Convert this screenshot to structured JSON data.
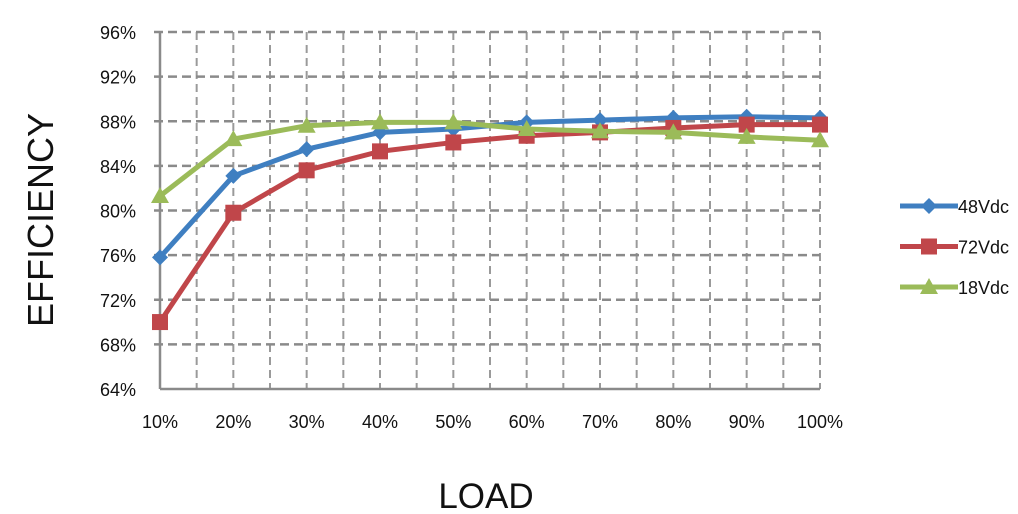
{
  "chart_data": {
    "type": "line",
    "title": "",
    "xlabel": "LOAD",
    "ylabel": "EFFICIENCY",
    "categories": [
      "10%",
      "20%",
      "30%",
      "40%",
      "50%",
      "60%",
      "70%",
      "80%",
      "90%",
      "100%"
    ],
    "y_ticks": [
      "64%",
      "68%",
      "72%",
      "76%",
      "80%",
      "84%",
      "88%",
      "92%",
      "96%"
    ],
    "ylim": [
      64,
      96
    ],
    "grid": true,
    "legend": "right",
    "series": [
      {
        "name": "48Vdc",
        "color": "#3f7fc1",
        "marker": "diamond",
        "values": [
          75.8,
          83.1,
          85.5,
          87.0,
          87.3,
          87.9,
          88.1,
          88.3,
          88.4,
          88.3
        ]
      },
      {
        "name": "72Vdc",
        "color": "#c0464a",
        "marker": "square",
        "values": [
          70.0,
          79.8,
          83.6,
          85.3,
          86.1,
          86.7,
          87.0,
          87.4,
          87.7,
          87.7
        ]
      },
      {
        "name": "18Vdc",
        "color": "#9bbb59",
        "marker": "triangle",
        "values": [
          81.3,
          86.4,
          87.6,
          87.9,
          87.9,
          87.3,
          87.1,
          87.0,
          86.6,
          86.3
        ]
      }
    ]
  }
}
